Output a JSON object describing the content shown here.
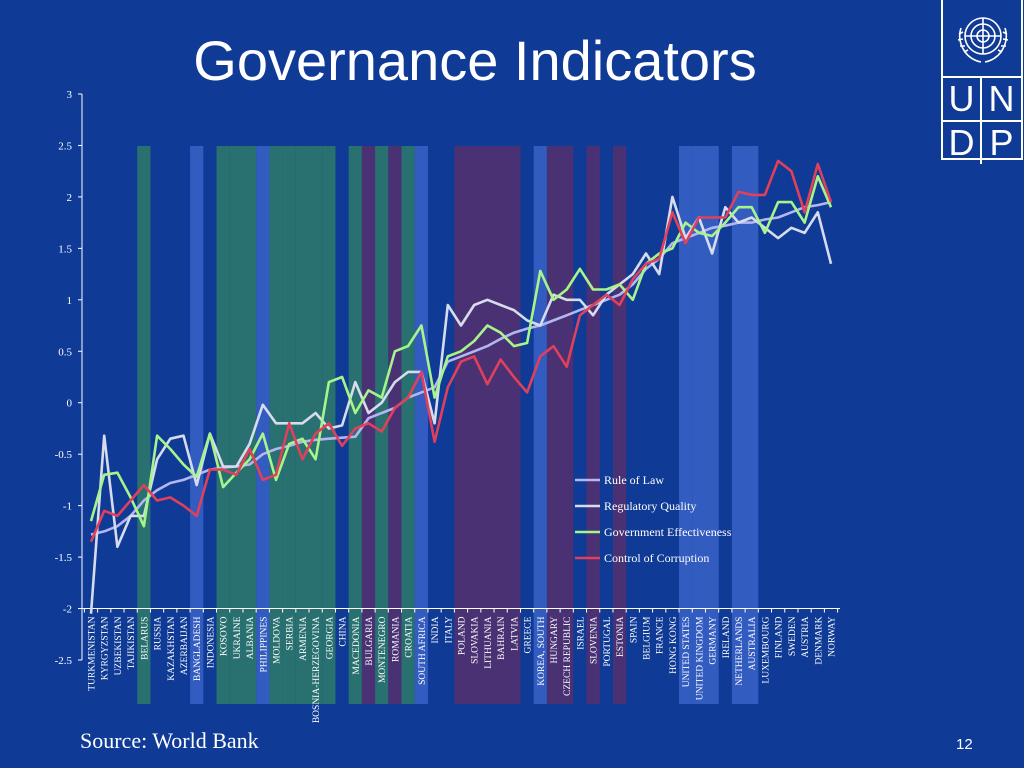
{
  "title": "Governance Indicators",
  "source": "Source: World Bank",
  "page_number": "12",
  "logo": {
    "letters": [
      "U",
      "N",
      "D",
      "P"
    ],
    "icon": "un-emblem-icon"
  },
  "colors": {
    "background": "#0f3a96",
    "rule_of_law": "#b4b6ef",
    "regulatory_quality": "#d6dcec",
    "government_effectiveness": "#a6f58a",
    "control_of_corruption": "#e0405a",
    "highlight_green": "#2e7a6a",
    "highlight_blue": "#3a63c8",
    "highlight_purple": "#55306e"
  },
  "chart_data": {
    "type": "line",
    "ylim": [
      -2.5,
      3
    ],
    "yticks": [
      "3",
      "2.5",
      "2",
      "1.5",
      "1",
      "0.5",
      "0",
      "-0.5",
      "-1",
      "-1.5",
      "-2",
      "-2.5"
    ],
    "legend_position": "right",
    "categories": [
      "TURKMENISTAN",
      "KYRGYZSTAN",
      "UZBEKISTAN",
      "TAJIKISTAN",
      "BELARUS",
      "RUSSIA",
      "KAZAKHSTAN",
      "AZERBAIJAN",
      "BANGLADESH",
      "INDONESIA",
      "KOSOVO",
      "UKRAINE",
      "ALBANIA",
      "PHILIPPINES",
      "MOLDOVA",
      "SERBIA",
      "ARMENIA",
      "BOSNIA-HERZEGOVINA",
      "GEORGIA",
      "CHINA",
      "MACEDONIA",
      "BULGARIA",
      "MONTENEGRO",
      "ROMANIA",
      "CROATIA",
      "SOUTH AFRICA",
      "INDIA",
      "ITALY",
      "POLAND",
      "SLOVAKIA",
      "LITHUANIA",
      "BAHRAIN",
      "LATVIA",
      "GREECE",
      "KOREA, SOUTH",
      "HUNGARY",
      "CZECH REPUBLIC",
      "ISRAEL",
      "SLOVENIA",
      "PORTUGAL",
      "ESTONIA",
      "SPAIN",
      "BELGIUM",
      "FRANCE",
      "HONG KONG",
      "UNITED STATES",
      "UNITED KINGDOM",
      "GERMANY",
      "IRELAND",
      "NETHERLANDS",
      "AUSTRALIA",
      "LUXEMBOURG",
      "FINLAND",
      "SWEDEN",
      "AUSTRIA",
      "DENMARK",
      "NORWAY"
    ],
    "highlights": [
      {
        "category": "BELARUS",
        "color": "green"
      },
      {
        "category": "BANGLADESH",
        "color": "blue"
      },
      {
        "category": "KOSOVO",
        "color": "green"
      },
      {
        "category": "UKRAINE",
        "color": "green"
      },
      {
        "category": "ALBANIA",
        "color": "green"
      },
      {
        "category": "PHILIPPINES",
        "color": "blue"
      },
      {
        "category": "MOLDOVA",
        "color": "green"
      },
      {
        "category": "SERBIA",
        "color": "green"
      },
      {
        "category": "ARMENIA",
        "color": "green"
      },
      {
        "category": "BOSNIA-HERZEGOVINA",
        "color": "green"
      },
      {
        "category": "GEORGIA",
        "color": "green"
      },
      {
        "category": "MACEDONIA",
        "color": "green"
      },
      {
        "category": "BULGARIA",
        "color": "purple"
      },
      {
        "category": "MONTENEGRO",
        "color": "green"
      },
      {
        "category": "ROMANIA",
        "color": "purple"
      },
      {
        "category": "CROATIA",
        "color": "green"
      },
      {
        "category": "SOUTH AFRICA",
        "color": "blue"
      },
      {
        "category": "POLAND",
        "color": "purple"
      },
      {
        "category": "SLOVAKIA",
        "color": "purple"
      },
      {
        "category": "LITHUANIA",
        "color": "purple"
      },
      {
        "category": "BAHRAIN",
        "color": "purple"
      },
      {
        "category": "LATVIA",
        "color": "purple"
      },
      {
        "category": "KOREA, SOUTH",
        "color": "blue"
      },
      {
        "category": "HUNGARY",
        "color": "purple"
      },
      {
        "category": "CZECH REPUBLIC",
        "color": "purple"
      },
      {
        "category": "SLOVENIA",
        "color": "purple"
      },
      {
        "category": "ESTONIA",
        "color": "purple"
      },
      {
        "category": "UNITED STATES",
        "color": "blue"
      },
      {
        "category": "UNITED KINGDOM",
        "color": "blue"
      },
      {
        "category": "GERMANY",
        "color": "blue"
      },
      {
        "category": "NETHERLANDS",
        "color": "blue"
      },
      {
        "category": "AUSTRALIA",
        "color": "blue"
      }
    ],
    "series": [
      {
        "name": "Rule of Law",
        "color_key": "rule_of_law",
        "values": [
          -1.28,
          -1.25,
          -1.2,
          -1.1,
          -0.95,
          -0.85,
          -0.78,
          -0.75,
          -0.7,
          -0.65,
          -0.63,
          -0.62,
          -0.6,
          -0.5,
          -0.45,
          -0.42,
          -0.38,
          -0.36,
          -0.35,
          -0.34,
          -0.33,
          -0.15,
          -0.1,
          -0.05,
          0.05,
          0.1,
          0.15,
          0.4,
          0.45,
          0.5,
          0.55,
          0.62,
          0.68,
          0.72,
          0.75,
          0.8,
          0.85,
          0.9,
          0.95,
          1.0,
          1.05,
          1.15,
          1.3,
          1.4,
          1.55,
          1.6,
          1.65,
          1.7,
          1.72,
          1.75,
          1.75,
          1.78,
          1.8,
          1.85,
          1.9,
          1.92,
          1.95
        ]
      },
      {
        "name": "Regulatory Quality",
        "color_key": "regulatory_quality",
        "values": [
          -2.05,
          -0.32,
          -1.4,
          -1.1,
          -1.1,
          -0.55,
          -0.35,
          -0.32,
          -0.8,
          -0.3,
          -0.62,
          -0.62,
          -0.4,
          -0.02,
          -0.2,
          -0.2,
          -0.2,
          -0.1,
          -0.25,
          -0.22,
          0.2,
          -0.1,
          0.0,
          0.2,
          0.3,
          0.3,
          -0.2,
          0.95,
          0.75,
          0.95,
          1.0,
          0.95,
          0.9,
          0.8,
          0.75,
          1.05,
          1.0,
          1.0,
          0.85,
          1.05,
          1.15,
          1.25,
          1.45,
          1.25,
          2.0,
          1.6,
          1.8,
          1.45,
          1.9,
          1.75,
          1.8,
          1.7,
          1.6,
          1.7,
          1.65,
          1.85,
          1.35
        ]
      },
      {
        "name": "Government Effectiveness",
        "color_key": "government_effectiveness",
        "values": [
          -1.15,
          -0.7,
          -0.68,
          -0.92,
          -1.2,
          -0.32,
          -0.45,
          -0.6,
          -0.72,
          -0.3,
          -0.82,
          -0.68,
          -0.55,
          -0.3,
          -0.75,
          -0.4,
          -0.35,
          -0.55,
          0.2,
          0.25,
          -0.1,
          0.12,
          0.05,
          0.5,
          0.55,
          0.75,
          0.05,
          0.45,
          0.5,
          0.6,
          0.75,
          0.68,
          0.55,
          0.58,
          1.28,
          1.0,
          1.1,
          1.3,
          1.1,
          1.1,
          1.15,
          1.0,
          1.35,
          1.45,
          1.5,
          1.75,
          1.65,
          1.62,
          1.75,
          1.9,
          1.9,
          1.65,
          1.95,
          1.95,
          1.75,
          2.2,
          1.9
        ]
      },
      {
        "name": "Control of Corruption",
        "color_key": "control_of_corruption",
        "values": [
          -1.35,
          -1.05,
          -1.1,
          -0.95,
          -0.8,
          -0.95,
          -0.92,
          -1.0,
          -1.1,
          -0.65,
          -0.65,
          -0.7,
          -0.45,
          -0.75,
          -0.7,
          -0.2,
          -0.55,
          -0.3,
          -0.2,
          -0.42,
          -0.25,
          -0.2,
          -0.28,
          -0.05,
          0.05,
          0.3,
          -0.38,
          0.15,
          0.4,
          0.45,
          0.18,
          0.42,
          0.25,
          0.1,
          0.45,
          0.55,
          0.35,
          0.85,
          0.95,
          1.05,
          0.95,
          1.2,
          1.35,
          1.4,
          1.85,
          1.55,
          1.8,
          1.8,
          1.8,
          2.05,
          2.02,
          2.02,
          2.35,
          2.25,
          1.85,
          2.32,
          1.95
        ]
      }
    ]
  }
}
